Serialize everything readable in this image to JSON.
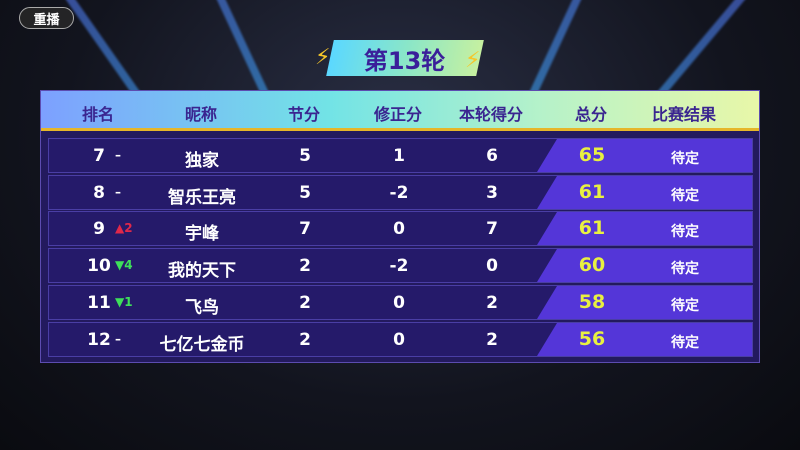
{
  "replay_label": "重播",
  "round_title": "第13轮",
  "columns": [
    "排名",
    "昵称",
    "节分",
    "修正分",
    "本轮得分",
    "总分",
    "比赛结果"
  ],
  "colors": {
    "up": "#e0284a",
    "down": "#3ee05a",
    "total": "#e8f040"
  },
  "rows": [
    {
      "rank": "7",
      "change": "–",
      "dir": "none",
      "name": "独家",
      "section": "5",
      "adjust": "1",
      "round": "6",
      "total": "65",
      "result": "待定"
    },
    {
      "rank": "8",
      "change": "–",
      "dir": "none",
      "name": "智乐王亮",
      "section": "5",
      "adjust": "-2",
      "round": "3",
      "total": "61",
      "result": "待定"
    },
    {
      "rank": "9",
      "change": "▲2",
      "dir": "up",
      "name": "宇峰",
      "section": "7",
      "adjust": "0",
      "round": "7",
      "total": "61",
      "result": "待定"
    },
    {
      "rank": "10",
      "change": "▼4",
      "dir": "down",
      "name": "我的天下",
      "section": "2",
      "adjust": "-2",
      "round": "0",
      "total": "60",
      "result": "待定"
    },
    {
      "rank": "11",
      "change": "▼1",
      "dir": "down",
      "name": "飞鸟",
      "section": "2",
      "adjust": "0",
      "round": "2",
      "total": "58",
      "result": "待定"
    },
    {
      "rank": "12",
      "change": "–",
      "dir": "none",
      "name": "七亿七金币",
      "section": "2",
      "adjust": "0",
      "round": "2",
      "total": "56",
      "result": "待定"
    }
  ]
}
